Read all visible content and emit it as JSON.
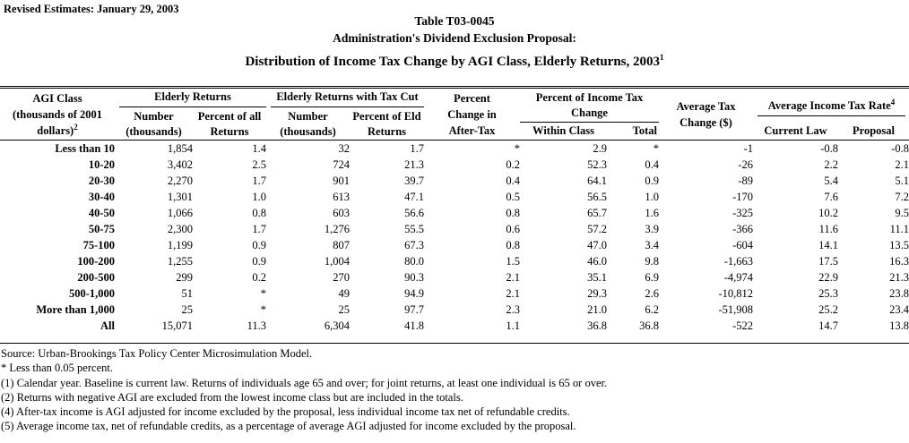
{
  "page": {
    "revised_note": "Revised Estimates: January 29, 2003",
    "title_line1": "Table T03-0045",
    "title_line2": "Administration's Dividend Exclusion Proposal:",
    "title_line3": "Distribution of Income Tax Change by AGI Class, Elderly Returns, 2003",
    "title_line3_sup": "1"
  },
  "table": {
    "header": {
      "agi_class": [
        "AGI Class",
        "(thousands of 2001",
        "dollars)"
      ],
      "agi_class_sup": "2",
      "elderly_returns": "Elderly Returns",
      "elderly_with_cut": "Elderly Returns with Tax Cut",
      "number1_line1": "Number",
      "number1_line2": "(thousands)",
      "pct_all_line1": "Percent of all",
      "pct_all_line2": "Returns",
      "number2_line1": "Number",
      "number2_line2": "(thousands)",
      "pct_eld_line1": "Percent of Eld",
      "pct_eld_line2": "Returns",
      "pct_change": [
        "Percent",
        "Change in",
        "After-Tax"
      ],
      "pct_inc_tax_line1": "Percent of Income Tax",
      "pct_inc_tax_line2": "Change",
      "within_class": "Within Class",
      "total": "Total",
      "avg_tax_line1": "Average Tax",
      "avg_tax_line2": "Change ($)",
      "avg_rate": "Average Income Tax Rate",
      "avg_rate_sup": "4",
      "current_law": "Current Law",
      "proposal": "Proposal"
    },
    "rows": [
      {
        "label": "Less than 10",
        "cells": [
          "1,854",
          "1.4",
          "32",
          "1.7",
          "*",
          "2.9",
          "*",
          "-1",
          "-0.8",
          "-0.8"
        ]
      },
      {
        "label": "10-20",
        "cells": [
          "3,402",
          "2.5",
          "724",
          "21.3",
          "0.2",
          "52.3",
          "0.4",
          "-26",
          "2.2",
          "2.1"
        ]
      },
      {
        "label": "20-30",
        "cells": [
          "2,270",
          "1.7",
          "901",
          "39.7",
          "0.4",
          "64.1",
          "0.9",
          "-89",
          "5.4",
          "5.1"
        ]
      },
      {
        "label": "30-40",
        "cells": [
          "1,301",
          "1.0",
          "613",
          "47.1",
          "0.5",
          "56.5",
          "1.0",
          "-170",
          "7.6",
          "7.2"
        ]
      },
      {
        "label": "40-50",
        "cells": [
          "1,066",
          "0.8",
          "603",
          "56.6",
          "0.8",
          "65.7",
          "1.6",
          "-325",
          "10.2",
          "9.5"
        ]
      },
      {
        "label": "50-75",
        "cells": [
          "2,300",
          "1.7",
          "1,276",
          "55.5",
          "0.6",
          "57.2",
          "3.9",
          "-366",
          "11.6",
          "11.1"
        ]
      },
      {
        "label": "75-100",
        "cells": [
          "1,199",
          "0.9",
          "807",
          "67.3",
          "0.8",
          "47.0",
          "3.4",
          "-604",
          "14.1",
          "13.5"
        ]
      },
      {
        "label": "100-200",
        "cells": [
          "1,255",
          "0.9",
          "1,004",
          "80.0",
          "1.5",
          "46.0",
          "9.8",
          "-1,663",
          "17.5",
          "16.3"
        ]
      },
      {
        "label": "200-500",
        "cells": [
          "299",
          "0.2",
          "270",
          "90.3",
          "2.1",
          "35.1",
          "6.9",
          "-4,974",
          "22.9",
          "21.3"
        ]
      },
      {
        "label": "500-1,000",
        "cells": [
          "51",
          "*",
          "49",
          "94.9",
          "2.1",
          "29.3",
          "2.6",
          "-10,812",
          "25.3",
          "23.8"
        ]
      },
      {
        "label": "More than 1,000",
        "cells": [
          "25",
          "*",
          "25",
          "97.7",
          "2.3",
          "21.0",
          "6.2",
          "-51,908",
          "25.2",
          "23.4"
        ]
      },
      {
        "label": "All",
        "cells": [
          "15,071",
          "11.3",
          "6,304",
          "41.8",
          "1.1",
          "36.8",
          "36.8",
          "-522",
          "14.7",
          "13.8"
        ]
      }
    ]
  },
  "footnotes": [
    "Source: Urban-Brookings Tax Policy Center Microsimulation Model.",
    "* Less than 0.05 percent.",
    "(1) Calendar year. Baseline is current law. Returns of individuals age 65 and over; for joint returns, at least one individual is 65 or over.",
    "(2) Returns with negative AGI are excluded from the lowest income class but are included in the totals.",
    "(4) After-tax income is AGI adjusted for income excluded by the proposal, less individual income tax net of refundable credits.",
    "(5) Average income tax, net of refundable credits, as a percentage of average AGI adjusted for income excluded by the proposal."
  ]
}
